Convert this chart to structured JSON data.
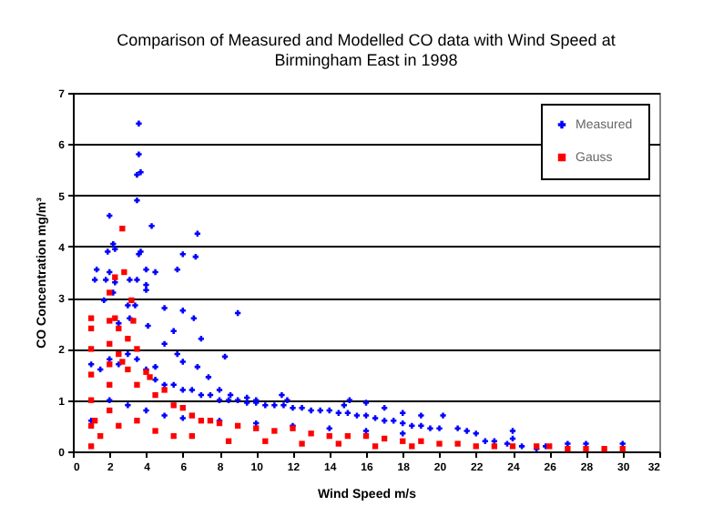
{
  "chart_data": {
    "type": "scatter",
    "title": "Comparison of Measured and Modelled CO data with Wind Speed at Birmingham East in 1998",
    "xlabel": "Wind Speed m/s",
    "ylabel": "CO Concentration mg/m³",
    "xlim": [
      0,
      32
    ],
    "xticks": [
      0,
      2,
      4,
      6,
      8,
      10,
      12,
      14,
      16,
      18,
      20,
      22,
      24,
      26,
      28,
      30,
      32
    ],
    "ylim": [
      0,
      7
    ],
    "yticks": [
      0,
      1,
      2,
      3,
      4,
      5,
      6,
      7
    ],
    "grid": "y",
    "legend": "top right",
    "series": [
      {
        "name": "Measured",
        "color": "#0000ff",
        "marker": "cross",
        "x": [
          3.6,
          3.6,
          3.5,
          3.7,
          3.5,
          2.0,
          4.3,
          6.8,
          2.2,
          2.3,
          1.9,
          3.7,
          3.6,
          6.0,
          6.7,
          1.3,
          2.0,
          4.0,
          4.5,
          5.7,
          1.2,
          1.8,
          2.3,
          3.1,
          3.5,
          2.2,
          4.0,
          4.0,
          1.7,
          3.0,
          3.4,
          5.0,
          6.0,
          6.6,
          9.0,
          3.1,
          2.5,
          4.1,
          5.5,
          7.0,
          5.0,
          8.3,
          5.7,
          6.0,
          6.8,
          4.5,
          7.4,
          8.0,
          8.6,
          9.5,
          10.0,
          11.4,
          11.7,
          14.8,
          15.1,
          16.0,
          17.0,
          18.0,
          19.0,
          20.2,
          21.0,
          21.5,
          22.0,
          22.5,
          23.0,
          23.7,
          24.0,
          24.0,
          24.5,
          25.3,
          25.8,
          27.0,
          28.0,
          30.0,
          1.0,
          1.5,
          2.0,
          2.5,
          3.0,
          3.5,
          4.0,
          4.5,
          5.0,
          5.5,
          6.0,
          6.5,
          7.0,
          7.5,
          8.0,
          8.5,
          9.0,
          9.5,
          10.0,
          10.5,
          11.0,
          11.5,
          12.0,
          12.5,
          13.0,
          13.5,
          14.0,
          14.5,
          15.0,
          15.5,
          16.0,
          16.5,
          17.0,
          17.5,
          18.0,
          18.5,
          19.0,
          19.5,
          20.0,
          1.0,
          2.0,
          3.0,
          4.0,
          5.0,
          6.0,
          8.0,
          10.0,
          12.0,
          14.0,
          16.0,
          18.0
        ],
        "values": [
          6.4,
          5.8,
          5.4,
          5.45,
          4.9,
          4.6,
          4.4,
          4.25,
          4.05,
          3.95,
          3.9,
          3.9,
          3.85,
          3.85,
          3.8,
          3.55,
          3.5,
          3.55,
          3.5,
          3.55,
          3.35,
          3.35,
          3.3,
          3.35,
          3.35,
          3.1,
          3.25,
          3.15,
          2.95,
          2.85,
          2.85,
          2.8,
          2.75,
          2.6,
          2.7,
          2.6,
          2.5,
          2.45,
          2.35,
          2.2,
          2.1,
          1.85,
          1.9,
          1.75,
          1.65,
          1.65,
          1.45,
          1.2,
          1.1,
          1.05,
          1.0,
          1.1,
          1.0,
          0.9,
          1.0,
          0.95,
          0.85,
          0.75,
          0.7,
          0.7,
          0.45,
          0.4,
          0.35,
          0.2,
          0.2,
          0.15,
          0.4,
          0.25,
          0.1,
          0.05,
          0.1,
          0.15,
          0.15,
          0.15,
          1.7,
          1.6,
          1.8,
          1.7,
          1.9,
          1.8,
          1.6,
          1.4,
          1.3,
          1.3,
          1.2,
          1.2,
          1.1,
          1.1,
          1.0,
          1.0,
          1.0,
          0.95,
          0.95,
          0.9,
          0.9,
          0.9,
          0.85,
          0.85,
          0.8,
          0.8,
          0.8,
          0.75,
          0.75,
          0.7,
          0.7,
          0.65,
          0.6,
          0.6,
          0.55,
          0.5,
          0.5,
          0.45,
          0.45,
          0.6,
          1.0,
          0.9,
          0.8,
          0.7,
          0.65,
          0.6,
          0.55,
          0.5,
          0.45,
          0.4,
          0.35
        ]
      },
      {
        "name": "Gauss",
        "color": "#ff0000",
        "marker": "square",
        "x": [
          1.0,
          1.0,
          1.0,
          1.0,
          1.0,
          1.0,
          1.0,
          1.2,
          2.0,
          2.0,
          2.0,
          2.0,
          2.0,
          2.0,
          2.3,
          2.3,
          2.5,
          2.5,
          2.7,
          2.8,
          2.7,
          3.0,
          3.0,
          3.2,
          3.3,
          3.5,
          3.5,
          4.0,
          4.2,
          4.5,
          5.0,
          5.5,
          6.0,
          6.5,
          7.0,
          7.5,
          8.0,
          9.0,
          10.0,
          11.0,
          12.0,
          13.0,
          14.0,
          15.0,
          16.0,
          17.0,
          18.0,
          19.0,
          20.0,
          21.0,
          22.0,
          23.0,
          24.0,
          25.3,
          26.0,
          27.0,
          28.0,
          29.0,
          30.0,
          1.5,
          2.5,
          3.5,
          4.5,
          5.5,
          6.5,
          8.5,
          10.5,
          12.5,
          14.5,
          16.5,
          18.5
        ],
        "values": [
          2.6,
          2.4,
          2.0,
          1.5,
          1.0,
          0.5,
          0.1,
          0.6,
          3.1,
          2.55,
          2.1,
          1.7,
          1.3,
          0.8,
          3.4,
          2.6,
          2.4,
          1.9,
          4.35,
          3.5,
          1.75,
          2.2,
          1.6,
          2.95,
          2.55,
          2.0,
          1.3,
          1.55,
          1.45,
          1.1,
          1.2,
          0.9,
          0.85,
          0.7,
          0.6,
          0.6,
          0.55,
          0.5,
          0.45,
          0.4,
          0.45,
          0.35,
          0.3,
          0.3,
          0.3,
          0.25,
          0.2,
          0.2,
          0.15,
          0.15,
          0.1,
          0.1,
          0.1,
          0.1,
          0.1,
          0.05,
          0.05,
          0.05,
          0.05,
          0.3,
          0.5,
          0.6,
          0.4,
          0.3,
          0.3,
          0.2,
          0.2,
          0.15,
          0.15,
          0.1,
          0.1
        ]
      }
    ]
  }
}
